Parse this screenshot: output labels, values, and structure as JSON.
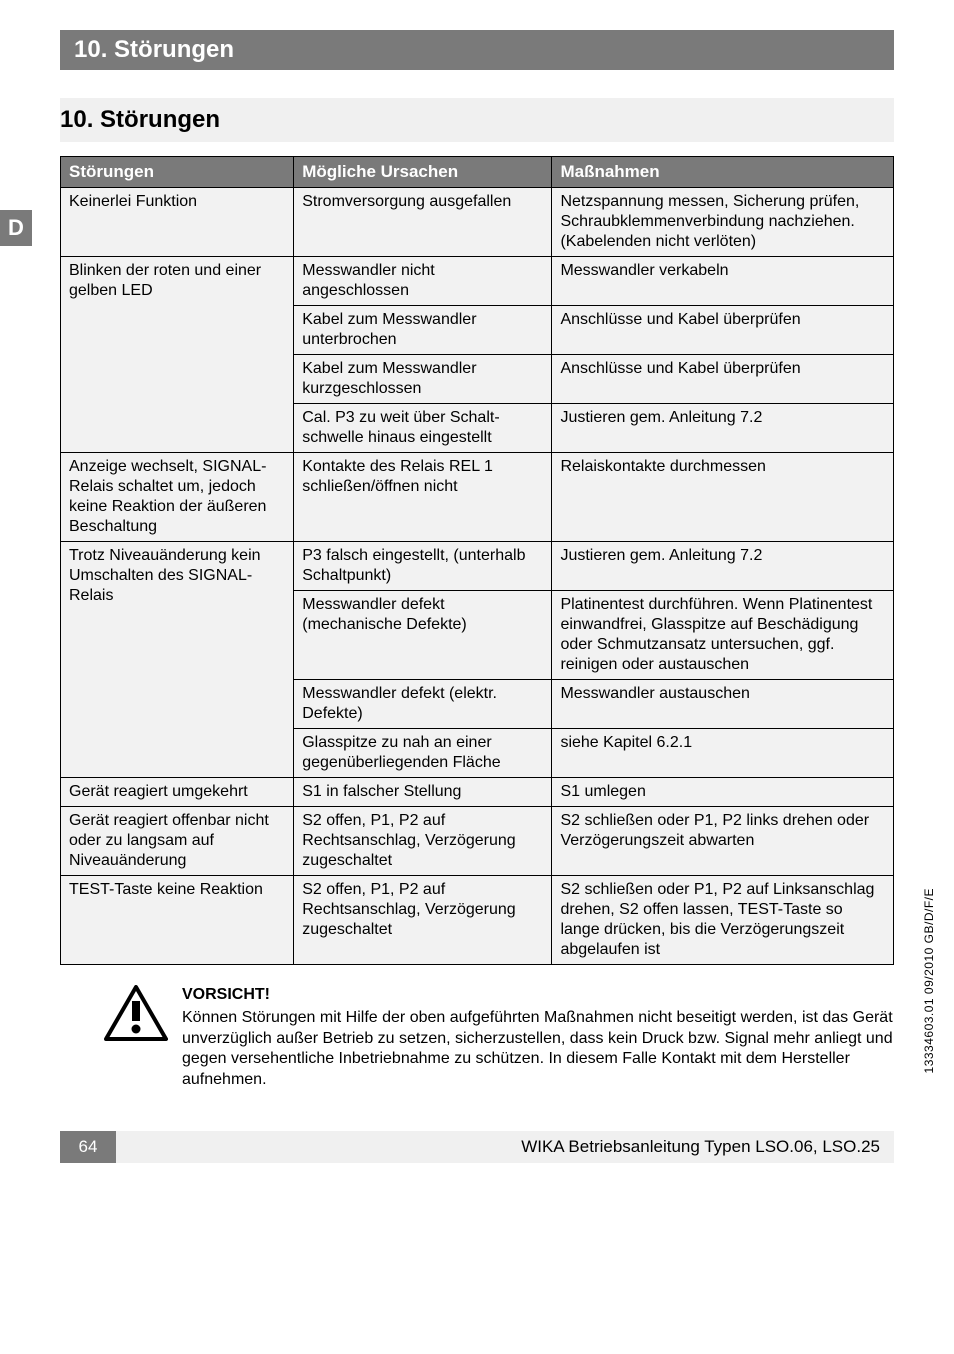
{
  "header": {
    "title": "10. Störungen"
  },
  "langTab": "D",
  "section": {
    "title": "10. Störungen"
  },
  "table": {
    "headers": {
      "c1": "Störungen",
      "c2": "Mögliche Ursachen",
      "c3": "Maßnahmen"
    },
    "rows": [
      {
        "c1": "Keinerlei Funktion",
        "c2": "Stromversorgung ausge­fallen",
        "c3": "Netzspannung messen, Sicherung prüfen, Schraubklemmenver­bindung nachziehen. (Kabelenden nicht verlöten)",
        "rs1": 1
      },
      {
        "c1": "Blinken der roten und einer gelben LED",
        "c2": "Messwandler nicht angeschlossen",
        "c3": "Messwandler verkabeln",
        "rs1": 4
      },
      {
        "c2": "Kabel zum Messwandler unterbrochen",
        "c3": "Anschlüsse und Kabel überprüfen"
      },
      {
        "c2": "Kabel zum Messwandler kurzgeschlossen",
        "c3": "Anschlüsse und Kabel überprüfen"
      },
      {
        "c2": "Cal. P3 zu weit über Schalt­schwelle hinaus eingestellt",
        "c3": "Justieren gem. Anleitung 7.2"
      },
      {
        "c1": "Anzeige wechselt, SIGNAL-Relais schaltet um, jedoch keine Reaktion der äußeren Beschaltung",
        "c2": "Kontakte des Relais REL 1 schließen/öffnen nicht",
        "c3": "Relaiskontakte durchmessen",
        "rs1": 1
      },
      {
        "c1": "Trotz Niveauänderung kein Umschalten des SIGNAL- Relais",
        "c2": "P3 falsch eingestellt, (unter­halb Schaltpunkt)",
        "c3": "Justieren gem. Anleitung 7.2",
        "rs1": 4
      },
      {
        "c2": "Messwandler defekt (mechanische Defekte)",
        "c3": "Platinentest durchführen. Wenn Platinentest einwandfrei, Glasspit­ze auf Beschädigung oder Schmutzansatz untersuchen, ggf. reinigen oder austauschen"
      },
      {
        "c2": "Messwandler defekt (elektr. Defekte)",
        "c3": "Messwandler austauschen"
      },
      {
        "c2": "Glasspitze zu nah an einer gegenüberliegenden Fläche",
        "c3": "siehe Kapitel 6.2.1"
      },
      {
        "c1": "Gerät reagiert umgekehrt",
        "c2": "S1 in falscher Stellung",
        "c3": "S1 umlegen",
        "rs1": 1
      },
      {
        "c1": "Gerät reagiert offenbar nicht oder zu langsam auf Niveauänderung",
        "c2": "S2 offen, P1, P2 auf Rechtsanschlag, Verzöge­rung zugeschaltet",
        "c3": "S2 schließen oder P1, P2 links drehen oder Verzögerungszeit abwarten",
        "rs1": 1
      },
      {
        "c1": "TEST-Taste keine Reaktion",
        "c2": "S2 offen, P1, P2 auf Rechtsanschlag, Verzöge­rung zugeschaltet",
        "c3": "S2 schließen oder P1, P2 auf Linksanschlag drehen, S2 offen lassen, TEST-Taste so lange drücken, bis die Verzögerungszeit abgelaufen ist",
        "rs1": 1
      }
    ]
  },
  "caution": {
    "title": "VORSICHT!",
    "body": "Können Störungen mit Hilfe der oben aufgeführten Maßnahmen nicht besei­tigt werden, ist das Gerät unverzüglich außer Betrieb zu setzen, sicherzu­stellen, dass kein Druck bzw. Signal mehr anliegt und gegen versehentliche Inbetriebnahme zu schützen. In diesem Falle Kontakt mit dem Hersteller aufnehmen."
  },
  "footer": {
    "pageNum": "64",
    "docTitle": "WIKA Betriebsanleitung Typen LSO.06, LSO.25"
  },
  "sideRef": "13334603.01 09/2010 GB/D/F/E",
  "colors": {
    "darkgray": "#7a7a7a",
    "lightgray": "#f2f2f2",
    "headerGray": "#f0f0f0"
  }
}
